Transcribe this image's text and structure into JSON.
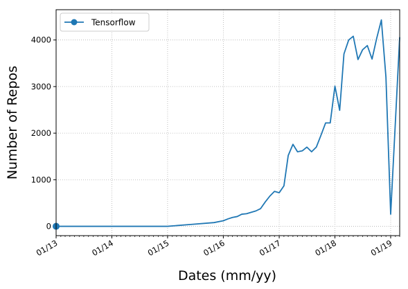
{
  "chart_data": {
    "type": "line",
    "xlabel": "Dates (mm/yy)",
    "ylabel": "Number of Repos",
    "x_axis_kind": "date",
    "xlim": [
      "2013-01-01",
      "2019-03-01"
    ],
    "ylim": [
      -200,
      4650
    ],
    "x_ticks": [
      {
        "date": "2013-01-01",
        "label": "01/13"
      },
      {
        "date": "2014-01-01",
        "label": "01/14"
      },
      {
        "date": "2015-01-01",
        "label": "01/15"
      },
      {
        "date": "2016-01-01",
        "label": "01/16"
      },
      {
        "date": "2017-01-01",
        "label": "01/17"
      },
      {
        "date": "2018-01-01",
        "label": "01/18"
      },
      {
        "date": "2019-01-01",
        "label": "01/19"
      }
    ],
    "y_ticks": [
      0,
      1000,
      2000,
      3000,
      4000
    ],
    "grid": true,
    "grid_style": "dotted",
    "legend_position": "top-left",
    "series": [
      {
        "name": "Tensorflow",
        "color": "#1f77b4",
        "marker_at": "first-point",
        "x": [
          "2013-01-01",
          "2015-01-01",
          "2015-06-01",
          "2015-11-01",
          "2016-01-01",
          "2016-02-01",
          "2016-03-01",
          "2016-04-01",
          "2016-05-01",
          "2016-06-01",
          "2016-07-01",
          "2016-08-01",
          "2016-09-01",
          "2016-10-01",
          "2016-11-01",
          "2016-12-01",
          "2017-01-01",
          "2017-02-01",
          "2017-03-01",
          "2017-04-01",
          "2017-05-01",
          "2017-06-01",
          "2017-07-01",
          "2017-08-01",
          "2017-09-01",
          "2017-10-01",
          "2017-11-01",
          "2017-12-01",
          "2018-01-01",
          "2018-02-01",
          "2018-03-01",
          "2018-04-01",
          "2018-05-01",
          "2018-06-01",
          "2018-07-01",
          "2018-08-01",
          "2018-09-01",
          "2018-10-01",
          "2018-11-01",
          "2018-12-01",
          "2019-01-01",
          "2019-02-01",
          "2019-03-01"
        ],
        "values": [
          0,
          0,
          40,
          80,
          120,
          160,
          190,
          210,
          260,
          270,
          300,
          330,
          380,
          520,
          650,
          750,
          720,
          870,
          1520,
          1760,
          1600,
          1620,
          1700,
          1600,
          1700,
          1950,
          2220,
          2220,
          3010,
          2490,
          3700,
          4000,
          4080,
          3580,
          3790,
          3880,
          3590,
          4030,
          4430,
          3200,
          260,
          2250,
          4060
        ]
      }
    ]
  }
}
